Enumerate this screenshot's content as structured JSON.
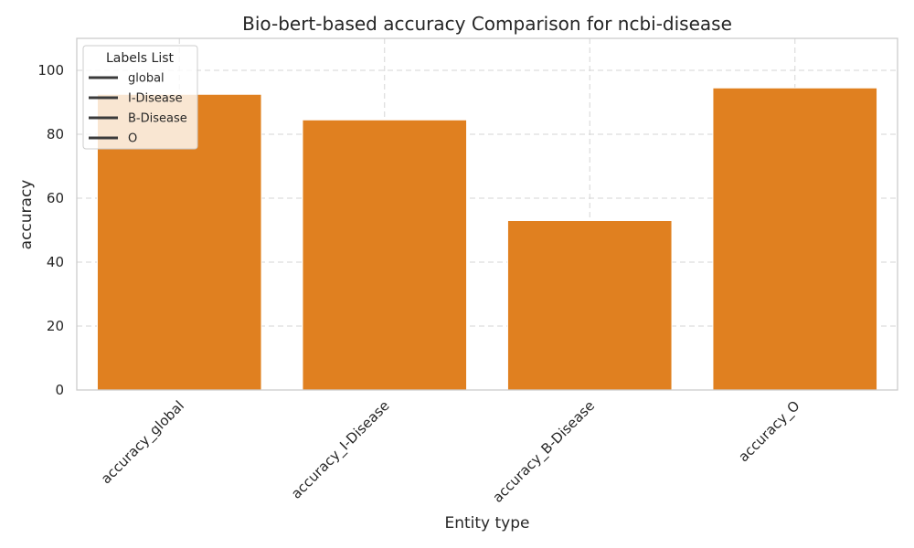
{
  "chart_data": {
    "type": "bar",
    "title": "Bio-bert-based  accuracy Comparison for ncbi-disease",
    "xlabel": "Entity type",
    "ylabel": "accuracy",
    "categories": [
      "accuracy_global",
      "accuracy_I-Disease",
      "accuracy_B-Disease",
      "accuracy_O"
    ],
    "values": [
      92.5,
      84.5,
      53.0,
      94.5
    ],
    "ylim": [
      0,
      110
    ],
    "yticks": [
      0,
      20,
      40,
      60,
      80,
      100
    ],
    "bar_color": "#e08020",
    "grid": true,
    "legend": {
      "title": "Labels List",
      "placement": "top-left",
      "entries": [
        "global",
        "I-Disease",
        "B-Disease",
        "O"
      ]
    }
  }
}
